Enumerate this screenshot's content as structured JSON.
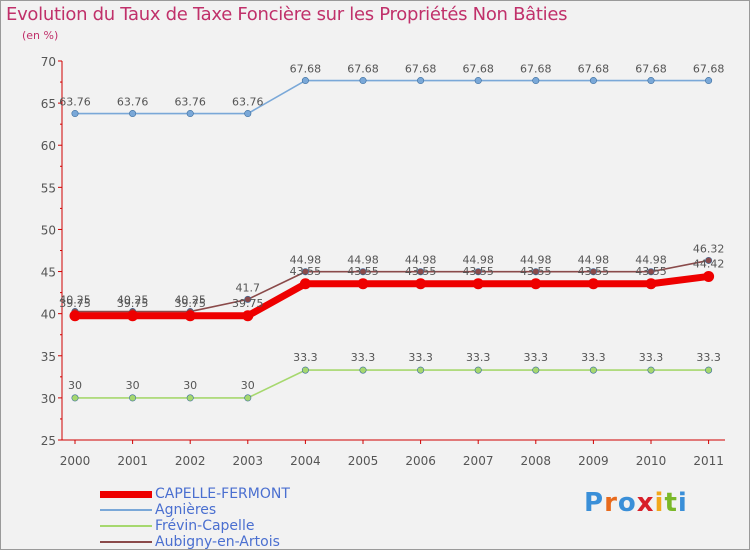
{
  "header": {
    "title": "Evolution du Taux de Taxe Foncière sur les Propriétés Non Bâties",
    "unit": "(en %)"
  },
  "brand": {
    "name": "Proxiti",
    "letters": [
      "P",
      "r",
      "o",
      "x",
      "i",
      "t",
      "i"
    ],
    "colors": [
      "#3a8fd8",
      "#e86a1c",
      "#3a8fd8",
      "#d8202a",
      "#f2a81c",
      "#7ab828",
      "#3a8fd8"
    ]
  },
  "chart_data": {
    "type": "line",
    "title": "Evolution du Taux de Taxe Foncière sur les Propriétés Non Bâties",
    "ylabel": "(en %)",
    "xlabel": "",
    "categories": [
      "2000",
      "2001",
      "2002",
      "2003",
      "2004",
      "2005",
      "2006",
      "2007",
      "2008",
      "2009",
      "2010",
      "2011"
    ],
    "ylim": [
      25,
      70
    ],
    "yticks": [
      25,
      30,
      35,
      40,
      45,
      50,
      55,
      60,
      65,
      70
    ],
    "grid": false,
    "legend_position": "bottom-left",
    "series": [
      {
        "name": "CAPELLE-FERMONT",
        "color": "#ee0000",
        "values": [
          39.75,
          39.75,
          39.75,
          39.75,
          43.55,
          43.55,
          43.55,
          43.55,
          43.55,
          43.55,
          43.55,
          44.42
        ],
        "labels": [
          "39.75",
          "39.75",
          "39.75",
          "39.75",
          "43.55",
          "43.55",
          "43.55",
          "43.55",
          "43.55",
          "43.55",
          "43.55",
          "44.42"
        ]
      },
      {
        "name": "Agnières",
        "color": "#7aa8d8",
        "values": [
          63.76,
          63.76,
          63.76,
          63.76,
          67.68,
          67.68,
          67.68,
          67.68,
          67.68,
          67.68,
          67.68,
          67.68
        ],
        "labels": [
          "63.76",
          "63.76",
          "63.76",
          "63.76",
          "67.68",
          "67.68",
          "67.68",
          "67.68",
          "67.68",
          "67.68",
          "67.68",
          "67.68"
        ]
      },
      {
        "name": "Frévin-Capelle",
        "color": "#a6d86e",
        "values": [
          30,
          30,
          30,
          30,
          33.3,
          33.3,
          33.3,
          33.3,
          33.3,
          33.3,
          33.3,
          33.3
        ],
        "labels": [
          "30",
          "30",
          "30",
          "30",
          "33.3",
          "33.3",
          "33.3",
          "33.3",
          "33.3",
          "33.3",
          "33.3",
          "33.3"
        ]
      },
      {
        "name": "Aubigny-en-Artois",
        "color": "#8a4a4a",
        "values": [
          40.25,
          40.25,
          40.25,
          41.7,
          44.98,
          44.98,
          44.98,
          44.98,
          44.98,
          44.98,
          44.98,
          46.32
        ],
        "labels": [
          "40.25",
          "40.25",
          "40.25",
          "41.7",
          "44.98",
          "44.98",
          "44.98",
          "44.98",
          "44.98",
          "44.98",
          "44.98",
          "46.32"
        ]
      }
    ]
  }
}
